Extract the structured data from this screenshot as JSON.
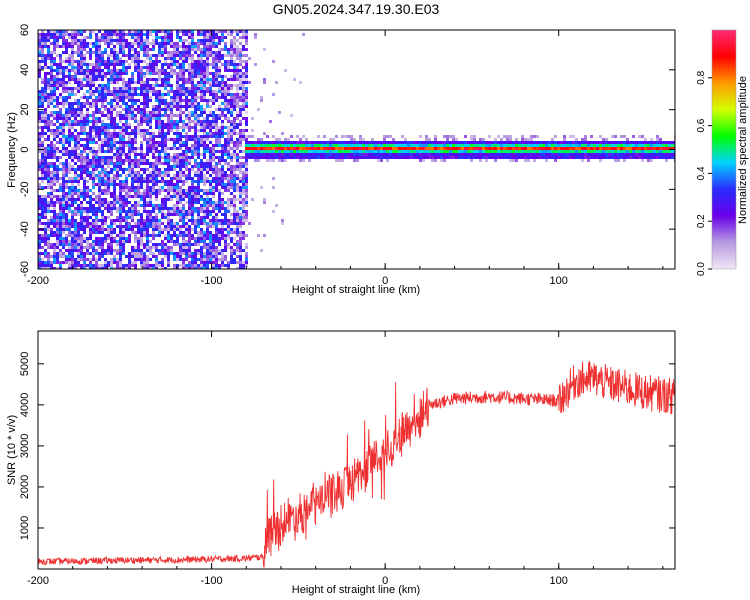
{
  "title": "GN05.2024.347.19.30.E03",
  "chart_data": [
    {
      "type": "heatmap",
      "xlabel": "Height of straight line (km)",
      "ylabel": "Frequency (Hz)",
      "xlim": [
        -200,
        167
      ],
      "ylim": [
        -60,
        60
      ],
      "xticks": [
        -200,
        -100,
        0,
        100
      ],
      "yticks": [
        -60,
        -40,
        -20,
        0,
        20,
        40,
        60
      ],
      "colorbar": {
        "label": "Normalized spectral amplitude",
        "range": [
          0,
          1
        ],
        "ticks": [
          0.0,
          0.2,
          0.4,
          0.6,
          0.8
        ],
        "colors": [
          "#f2e6f7",
          "#b79be0",
          "#6a00e8",
          "#2a2bff",
          "#00d2ff",
          "#00ff00",
          "#d4ff00",
          "#ff9a00",
          "#ff0000",
          "#ff2a78"
        ]
      },
      "features": {
        "noise_region_x": [
          -200,
          -80
        ],
        "signal_start_x": -82,
        "signal_frequency_hz": 0,
        "signal_core_amplitude": 0.95
      }
    },
    {
      "type": "line",
      "xlabel": "Height of straight line (km)",
      "ylabel": "SNR (10 * v/v)",
      "xlim": [
        -200,
        167
      ],
      "ylim": [
        0,
        5800
      ],
      "xticks": [
        -200,
        -100,
        0,
        100
      ],
      "yticks": [
        1000,
        2000,
        3000,
        4000,
        5000
      ],
      "series": [
        {
          "color": "#ef3030",
          "x": [
            -200,
            -150,
            -110,
            -80,
            -70,
            -68,
            -60,
            -50,
            -40,
            -30,
            -20,
            -10,
            0,
            10,
            20,
            25,
            40,
            60,
            80,
            100,
            110,
            120,
            130,
            150,
            167
          ],
          "y": [
            180,
            210,
            230,
            260,
            300,
            800,
            1100,
            1350,
            1600,
            1850,
            2150,
            2500,
            2900,
            3300,
            3700,
            4000,
            4150,
            4200,
            4150,
            4100,
            4600,
            4650,
            4500,
            4300,
            4200
          ]
        }
      ]
    }
  ]
}
